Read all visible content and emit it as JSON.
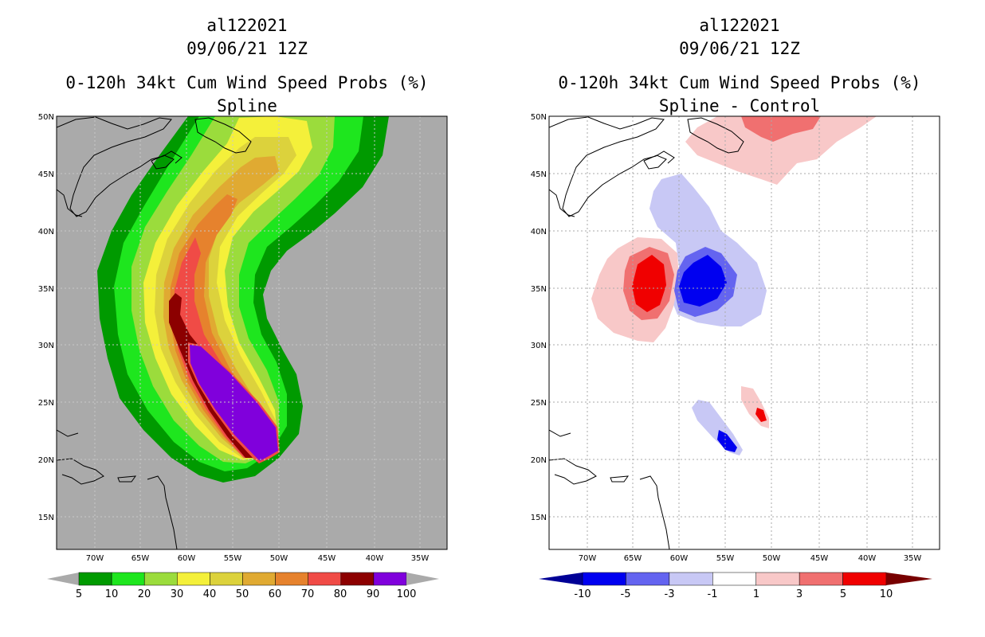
{
  "left_panel": {
    "storm_id": "al122021",
    "datetime": "09/06/21 12Z",
    "product": "0-120h 34kt Cum Wind Speed Probs (%)",
    "subtitle": "Spline"
  },
  "right_panel": {
    "storm_id": "al122021",
    "datetime": "09/06/21 12Z",
    "product": "0-120h 34kt Cum Wind Speed Probs (%)",
    "subtitle": "Spline - Control"
  },
  "axes": {
    "lat_labels": [
      "50N",
      "45N",
      "40N",
      "35N",
      "30N",
      "25N",
      "20N",
      "15N"
    ],
    "lon_labels": [
      "70W",
      "65W",
      "60W",
      "55W",
      "50W",
      "45W",
      "40W",
      "35W"
    ]
  },
  "left_colorbar": {
    "labels": [
      "5",
      "10",
      "20",
      "30",
      "40",
      "50",
      "60",
      "70",
      "80",
      "90",
      "100"
    ],
    "colors": [
      "#009a00",
      "#1ee61e",
      "#9bdc3c",
      "#f4f03a",
      "#dcd23c",
      "#e0aa32",
      "#e6822d",
      "#f04b46",
      "#8c0000",
      "#8000dc"
    ]
  },
  "right_colorbar": {
    "labels": [
      "-10",
      "-5",
      "-3",
      "-1",
      "1",
      "3",
      "5",
      "10"
    ],
    "colors": [
      "#0000f0",
      "#6464f0",
      "#c8c8f5",
      "#ffffff",
      "#f8c8c8",
      "#f07070",
      "#f00000"
    ],
    "low_color": "#000096",
    "high_color": "#780000"
  },
  "colors": {
    "background_gray": "#aaaaaa",
    "coast": "#000000",
    "grid": "#aaaaaa"
  }
}
